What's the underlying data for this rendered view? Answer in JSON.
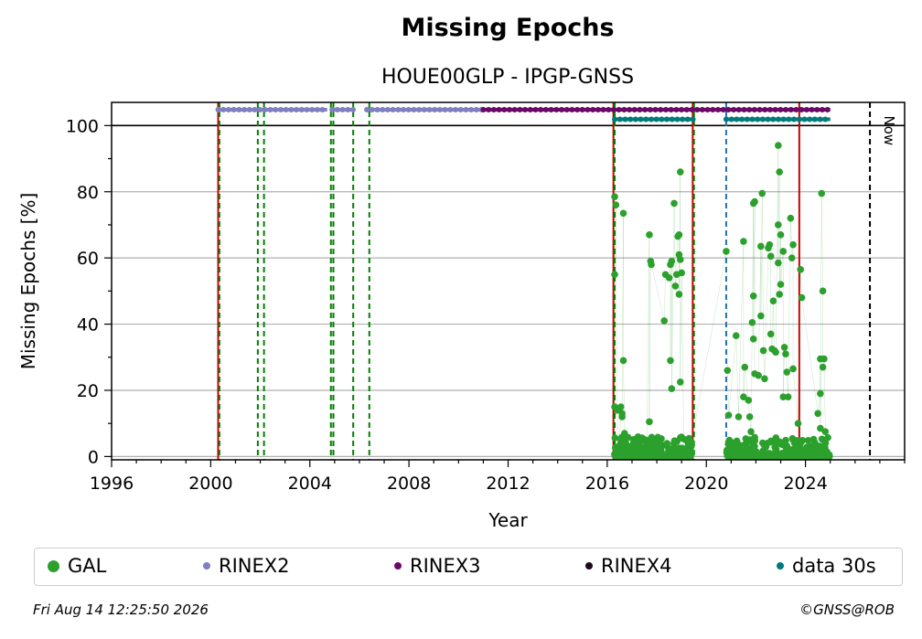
{
  "chart_data": {
    "type": "scatter",
    "title": "Missing Epochs",
    "subtitle": "HOUE00GLP - IPGP-GNSS",
    "xlabel": "Year",
    "ylabel": "Missing Epochs [%]",
    "xlim": [
      1996,
      2028.0
    ],
    "ylim": [
      -1,
      107
    ],
    "x_ticks": [
      "1996",
      "2000",
      "2004",
      "2008",
      "2012",
      "2016",
      "2020",
      "2024"
    ],
    "y_ticks": [
      "0",
      "20",
      "40",
      "60",
      "80",
      "100"
    ],
    "grid": "y",
    "now_label": "Now",
    "now_year": 2026.6,
    "legend": [
      {
        "label": "GAL",
        "color": "#2ca02c"
      },
      {
        "label": "RINEX2",
        "color": "#8080c0"
      },
      {
        "label": "RINEX3",
        "color": "#6a0a66"
      },
      {
        "label": "RINEX4",
        "color": "#1a0a1a"
      },
      {
        "label": "data 30s",
        "color": "#007a7a"
      }
    ],
    "series": [
      {
        "name": "GAL",
        "color": "#2ca02c",
        "points": [
          [
            2016.3,
            78.5
          ],
          [
            2016.35,
            76
          ],
          [
            2016.3,
            55
          ],
          [
            2016.3,
            15
          ],
          [
            2016.4,
            14
          ],
          [
            2016.55,
            15
          ],
          [
            2016.6,
            13
          ],
          [
            2016.65,
            73.5
          ],
          [
            2016.6,
            12
          ],
          [
            2016.65,
            29
          ],
          [
            2016.7,
            7
          ],
          [
            2016.75,
            4
          ],
          [
            2016.5,
            3
          ],
          [
            2016.45,
            1
          ],
          [
            2016.9,
            1
          ],
          [
            2017.1,
            0.5
          ],
          [
            2017.4,
            2
          ],
          [
            2017.6,
            1
          ],
          [
            2017.7,
            67
          ],
          [
            2017.75,
            59
          ],
          [
            2017.78,
            58
          ],
          [
            2017.7,
            10.5
          ],
          [
            2018.3,
            41
          ],
          [
            2018.35,
            55
          ],
          [
            2018.5,
            54
          ],
          [
            2018.55,
            58
          ],
          [
            2018.6,
            59
          ],
          [
            2018.55,
            29
          ],
          [
            2018.6,
            20.5
          ],
          [
            2018.7,
            76.5
          ],
          [
            2018.75,
            51.5
          ],
          [
            2018.8,
            55
          ],
          [
            2018.85,
            66.5
          ],
          [
            2018.9,
            67
          ],
          [
            2018.95,
            86
          ],
          [
            2018.9,
            61
          ],
          [
            2018.95,
            59.5
          ],
          [
            2018.9,
            49
          ],
          [
            2018.95,
            22.5
          ],
          [
            2019.0,
            55.5
          ],
          [
            2019.1,
            0
          ],
          [
            2019.3,
            0
          ],
          [
            2020.8,
            62
          ],
          [
            2020.85,
            26
          ],
          [
            2020.9,
            12.5
          ],
          [
            2021.2,
            36.5
          ],
          [
            2021.3,
            12
          ],
          [
            2021.5,
            65
          ],
          [
            2021.55,
            27
          ],
          [
            2021.5,
            18
          ],
          [
            2021.7,
            17
          ],
          [
            2021.75,
            12
          ],
          [
            2021.8,
            7.5
          ],
          [
            2021.9,
            76.5
          ],
          [
            2021.95,
            77
          ],
          [
            2021.9,
            48.5
          ],
          [
            2021.85,
            40.5
          ],
          [
            2021.9,
            35.5
          ],
          [
            2021.95,
            25
          ],
          [
            2022.1,
            24.5
          ],
          [
            2022.2,
            63.5
          ],
          [
            2022.25,
            79.5
          ],
          [
            2022.2,
            42.5
          ],
          [
            2022.3,
            32
          ],
          [
            2022.35,
            23.5
          ],
          [
            2022.5,
            63
          ],
          [
            2022.55,
            64
          ],
          [
            2022.6,
            60.5
          ],
          [
            2022.7,
            47
          ],
          [
            2022.6,
            37
          ],
          [
            2022.65,
            32.5
          ],
          [
            2022.75,
            32
          ],
          [
            2022.8,
            31.5
          ],
          [
            2022.9,
            94
          ],
          [
            2022.95,
            86
          ],
          [
            2022.9,
            70
          ],
          [
            2023.0,
            67
          ],
          [
            2022.9,
            58.5
          ],
          [
            2023.0,
            52
          ],
          [
            2022.95,
            49
          ],
          [
            2023.1,
            62
          ],
          [
            2023.15,
            33
          ],
          [
            2023.2,
            31
          ],
          [
            2023.25,
            25.5
          ],
          [
            2023.1,
            18
          ],
          [
            2023.3,
            18
          ],
          [
            2023.4,
            72
          ],
          [
            2023.5,
            64
          ],
          [
            2023.45,
            60
          ],
          [
            2023.5,
            26.5
          ],
          [
            2023.8,
            56.5
          ],
          [
            2023.85,
            48
          ],
          [
            2023.7,
            10
          ],
          [
            2024.5,
            13
          ],
          [
            2024.6,
            19
          ],
          [
            2024.65,
            79.5
          ],
          [
            2024.7,
            50
          ],
          [
            2024.6,
            29.5
          ],
          [
            2024.75,
            29.5
          ],
          [
            2024.7,
            27
          ],
          [
            2024.6,
            8.5
          ],
          [
            2024.8,
            7.5
          ]
        ]
      }
    ],
    "rinex2_segments": [
      [
        2000.3,
        2004.7
      ],
      [
        2004.9,
        2005.8
      ],
      [
        2006.3,
        2011.0
      ]
    ],
    "rinex3_segments": [
      [
        2011.0,
        2025.0
      ]
    ],
    "data30s_segments": [
      [
        2016.3,
        2019.5
      ],
      [
        2020.8,
        2025.0
      ]
    ],
    "event_lines": [
      {
        "year": 2000.3,
        "color": "#cc0000",
        "style": "solid"
      },
      {
        "year": 2000.35,
        "color": "#008000",
        "style": "dashed"
      },
      {
        "year": 2001.9,
        "color": "#008000",
        "style": "dashed"
      },
      {
        "year": 2002.15,
        "color": "#008000",
        "style": "dashed"
      },
      {
        "year": 2004.85,
        "color": "#008000",
        "style": "dashed"
      },
      {
        "year": 2004.95,
        "color": "#008000",
        "style": "dashed"
      },
      {
        "year": 2005.75,
        "color": "#008000",
        "style": "dashed"
      },
      {
        "year": 2006.4,
        "color": "#008000",
        "style": "dashed"
      },
      {
        "year": 2016.25,
        "color": "#cc0000",
        "style": "solid"
      },
      {
        "year": 2016.3,
        "color": "#008000",
        "style": "dashed"
      },
      {
        "year": 2019.45,
        "color": "#cc0000",
        "style": "solid"
      },
      {
        "year": 2019.5,
        "color": "#008000",
        "style": "dashed"
      },
      {
        "year": 2020.8,
        "color": "#1f6fb4",
        "style": "dashed"
      },
      {
        "year": 2023.75,
        "color": "#cc0000",
        "style": "solid"
      },
      {
        "year": 2026.6,
        "color": "#000000",
        "style": "dashed"
      }
    ]
  },
  "footer": {
    "timestamp": "Fri Aug 14 12:25:50 2026",
    "copyright": "©GNSS@ROB"
  }
}
